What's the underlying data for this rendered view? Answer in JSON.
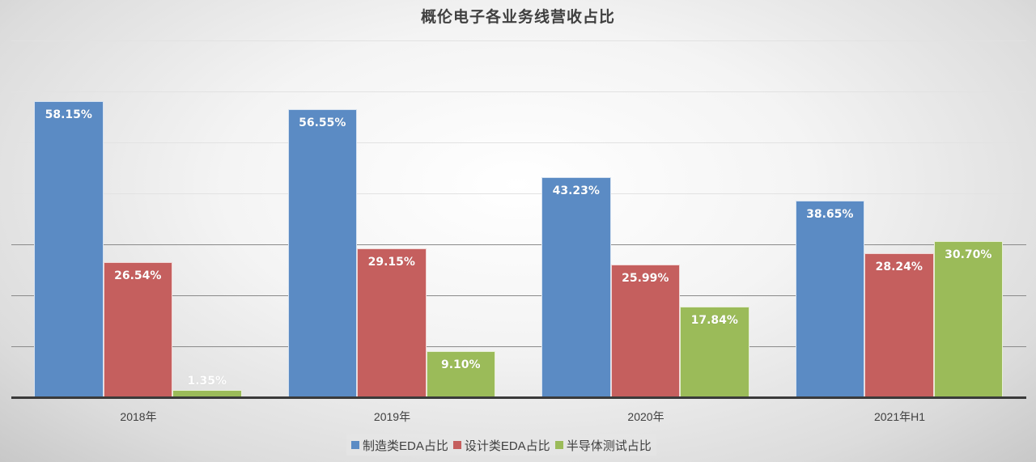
{
  "chart_data": {
    "type": "bar",
    "title": "概伦电子各业务线营收占比",
    "categories": [
      "2018年",
      "2019年",
      "2020年",
      "2021年H1"
    ],
    "series": [
      {
        "name": "制造类EDA占比",
        "color": "#5B8BC4",
        "values": [
          58.15,
          56.55,
          43.23,
          38.65
        ],
        "labels": [
          "58.15%",
          "56.55%",
          "43.23%",
          "38.65%"
        ]
      },
      {
        "name": "设计类EDA占比",
        "color": "#C55F5E",
        "values": [
          26.54,
          29.15,
          25.99,
          28.24
        ],
        "labels": [
          "26.54%",
          "29.15%",
          "25.99%",
          "28.24%"
        ]
      },
      {
        "name": "半导体测试占比",
        "color": "#9BBB59",
        "values": [
          1.35,
          9.1,
          17.84,
          30.7
        ],
        "labels": [
          "1.35%",
          "9.10%",
          "17.84%",
          "30.70%"
        ]
      }
    ],
    "xlabel": "",
    "ylabel": "",
    "ylim": [
      0,
      70
    ],
    "yticks_hidden": true,
    "grid": true,
    "legend_position": "bottom",
    "data_labels": "inside-end",
    "unit": "%"
  }
}
